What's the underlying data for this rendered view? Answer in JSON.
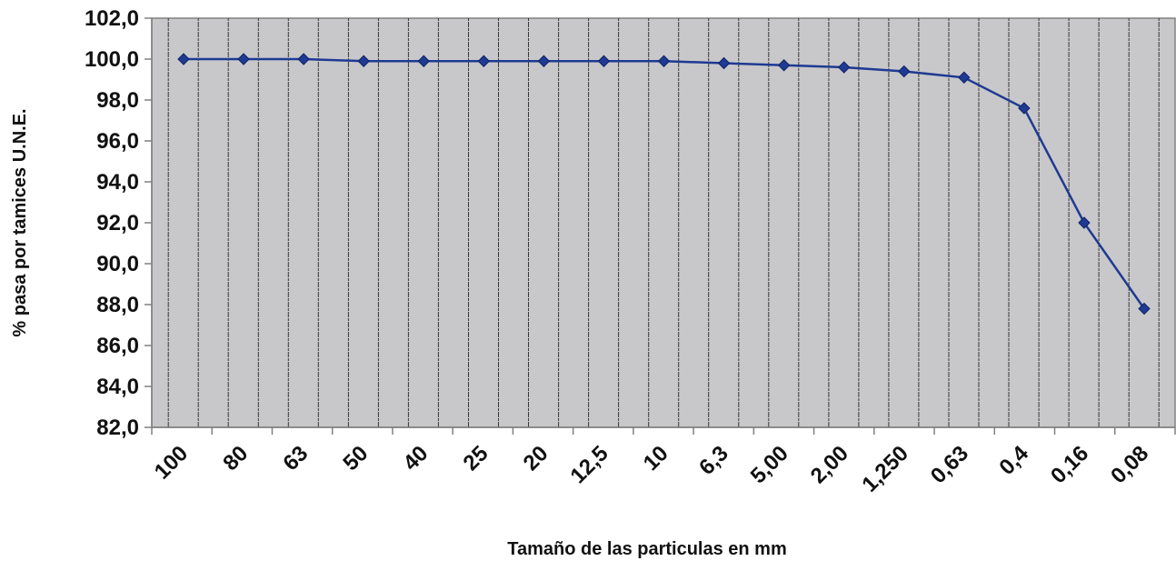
{
  "chart_data": {
    "type": "line",
    "title": "",
    "xlabel": "Tamaño de las particulas en mm",
    "ylabel": "% pasa por tamices U.N.E.",
    "categories": [
      "100",
      "80",
      "63",
      "50",
      "40",
      "25",
      "20",
      "12,5",
      "10",
      "6,3",
      "5,00",
      "2,00",
      "1,250",
      "0,63",
      "0,4",
      "0,16",
      "0,08"
    ],
    "series": [
      {
        "values": [
          100.0,
          100.0,
          100.0,
          99.9,
          99.9,
          99.9,
          99.9,
          99.9,
          99.9,
          99.8,
          99.7,
          99.6,
          99.4,
          99.1,
          97.6,
          92.0,
          87.8
        ]
      }
    ],
    "ylim": [
      82.0,
      102.0
    ],
    "ytick_labels": [
      "82,0",
      "84,0",
      "86,0",
      "88,0",
      "90,0",
      "92,0",
      "94,0",
      "96,0",
      "98,0",
      "100,0",
      "102,0"
    ],
    "grid": true,
    "legend": "none",
    "colors": {
      "plot_background": "#c8c8ca",
      "series_line": "#1f3a93",
      "marker": "#1f3a93",
      "gridline": "#202020",
      "axis": "#808080"
    }
  }
}
